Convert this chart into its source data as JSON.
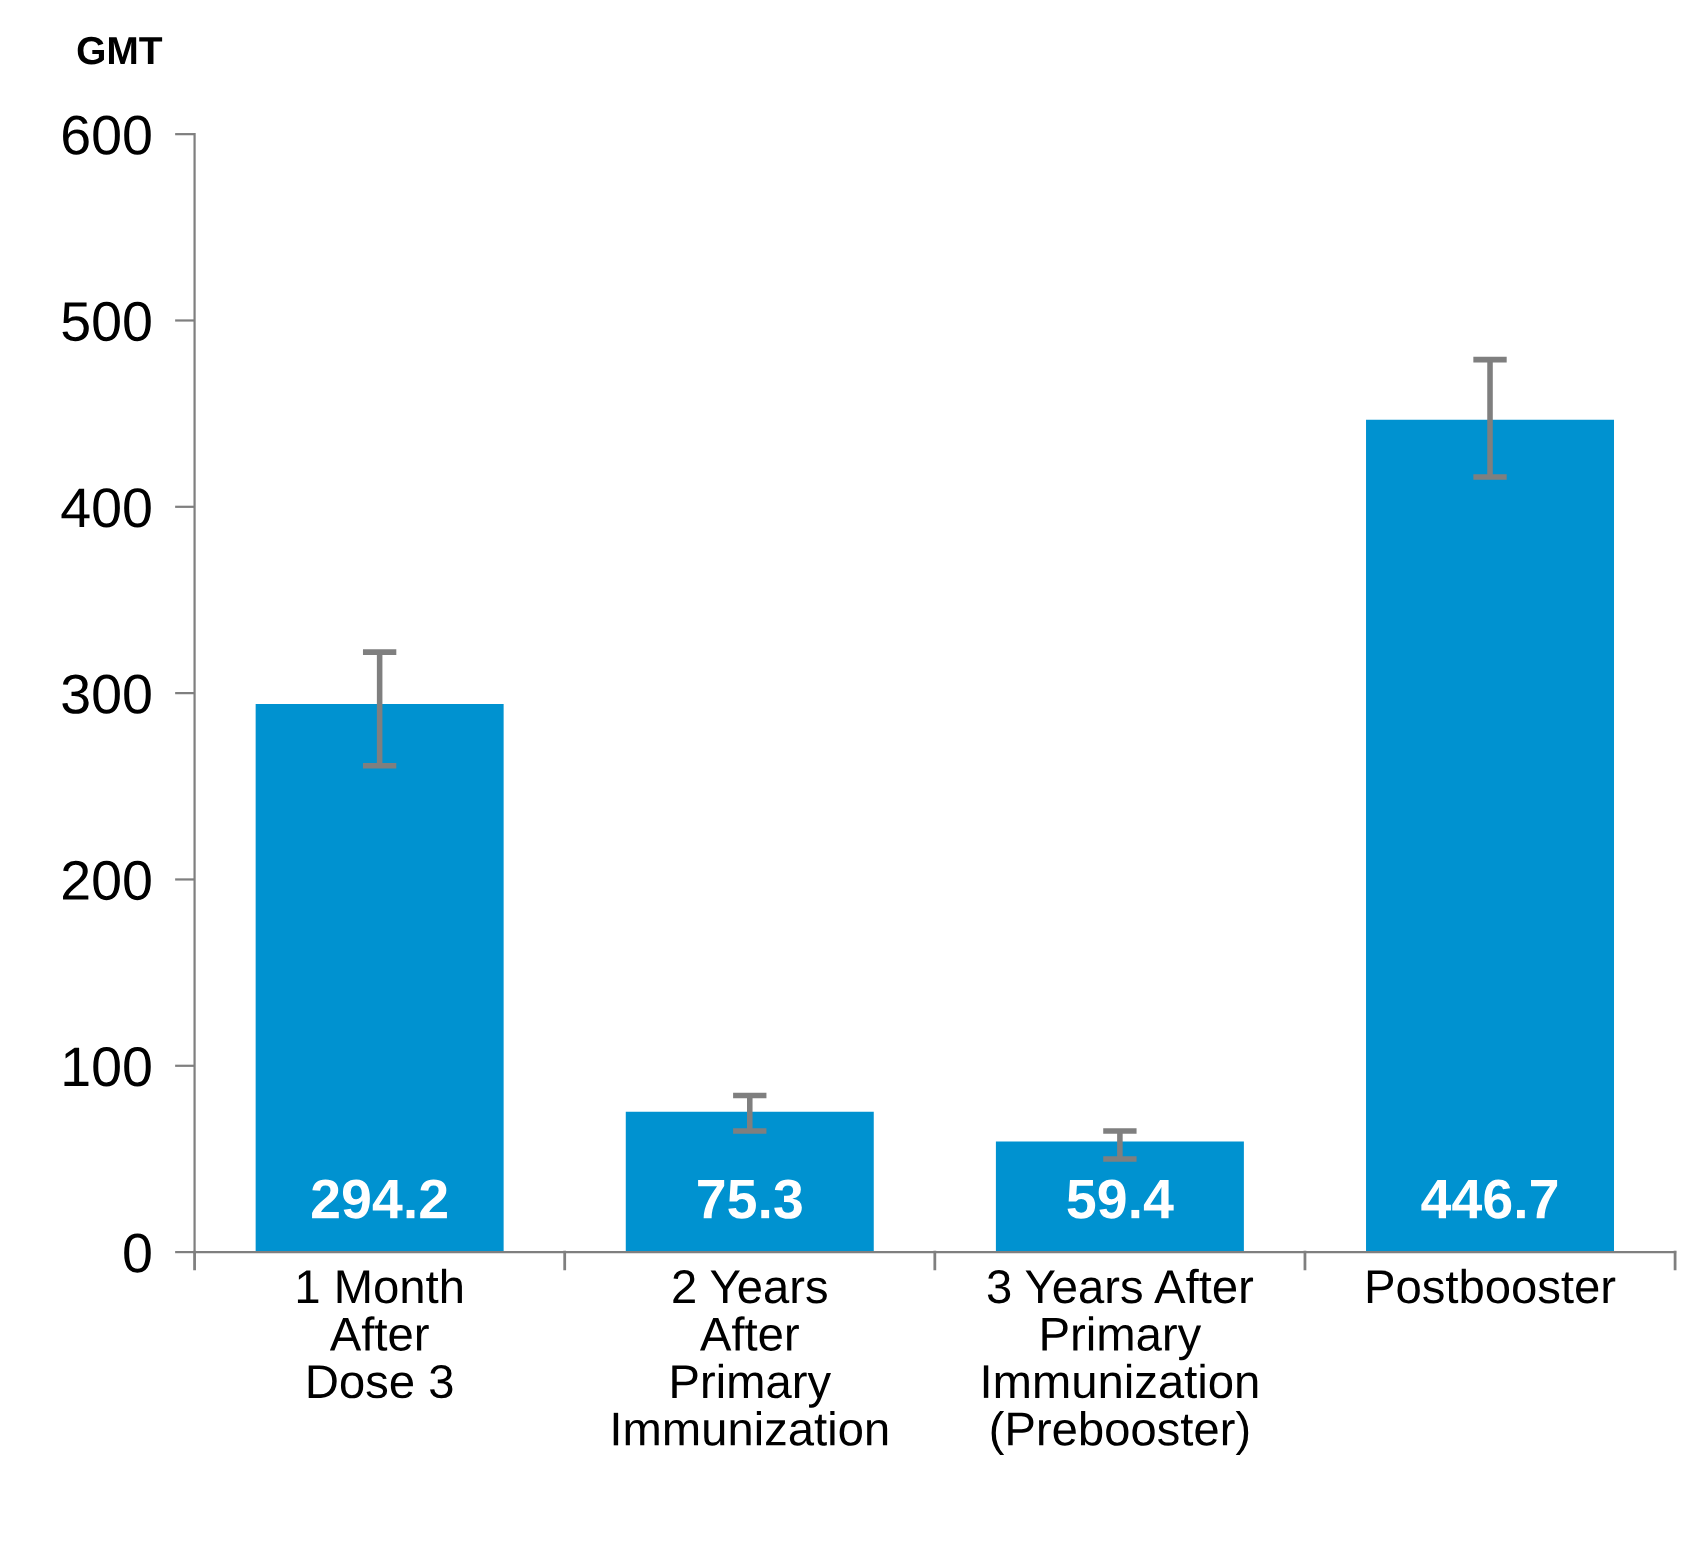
{
  "chart_data": {
    "type": "bar",
    "ylabel": "GMT",
    "categories": [
      "1 Month\nAfter\nDose 3",
      "2 Years\nAfter\nPrimary\nImmunization",
      "3 Years After\nPrimary\nImmunization\n(Prebooster)",
      "Postbooster"
    ],
    "values": [
      294.2,
      75.3,
      59.4,
      446.7
    ],
    "errors": [
      [
        261,
        322
      ],
      [
        65,
        84
      ],
      [
        50,
        65
      ],
      [
        416,
        479
      ]
    ],
    "color": "#0092d0",
    "data_labels": true,
    "ylim": [
      0,
      600
    ],
    "yticks": [
      0,
      100,
      200,
      300,
      400,
      500,
      600
    ],
    "grid": false,
    "legend": false
  }
}
